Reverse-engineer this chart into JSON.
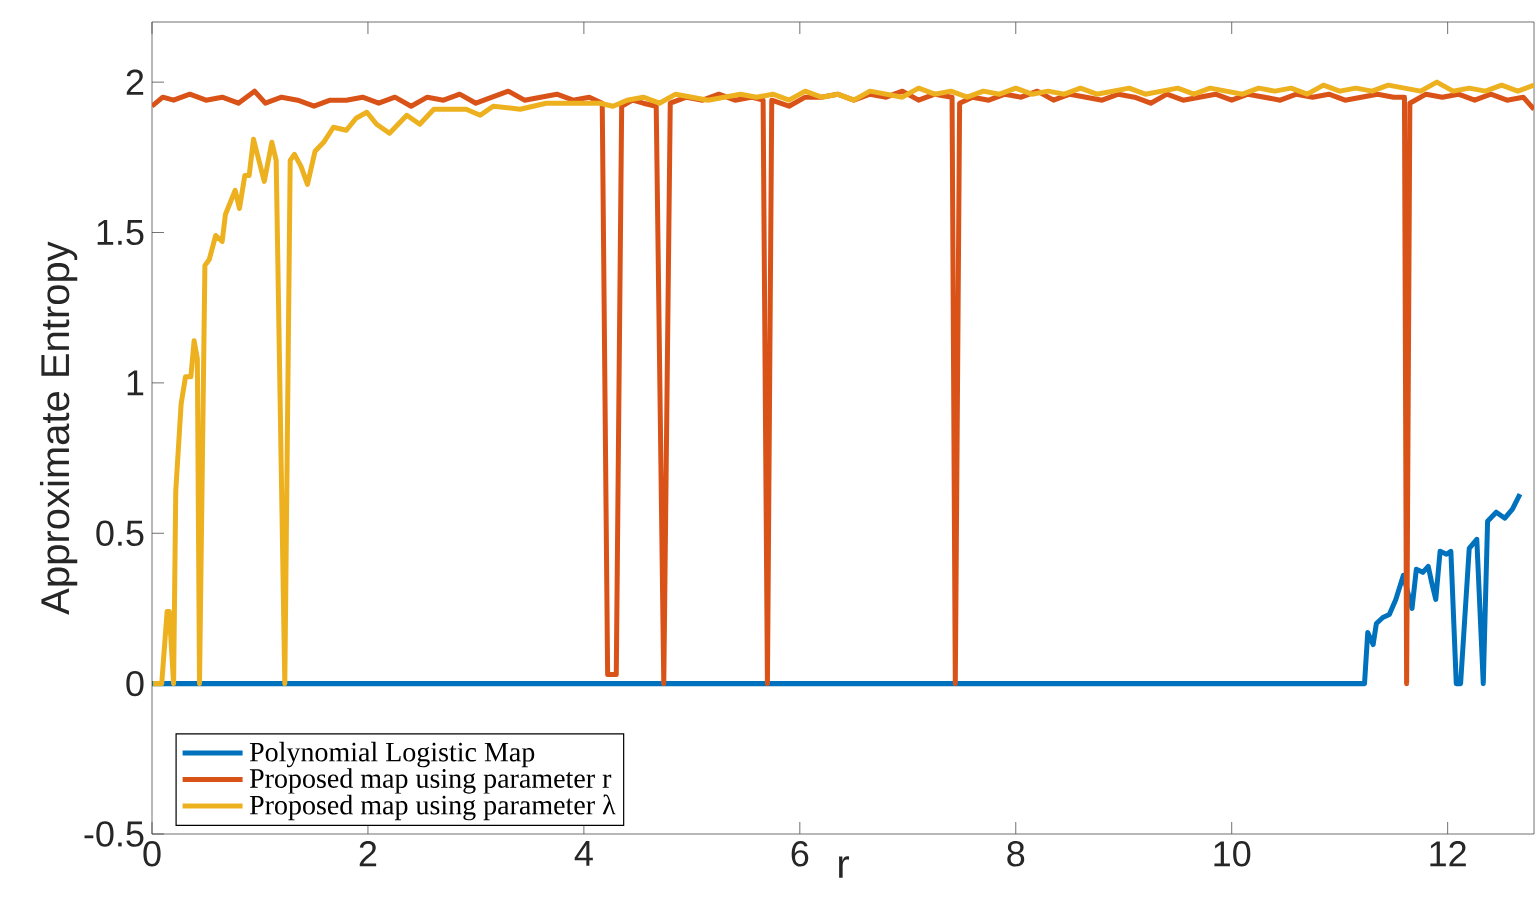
{
  "chart_data": {
    "type": "line",
    "xlabel": "r",
    "ylabel": "Approximate Entropy",
    "xlim": [
      0,
      12.8
    ],
    "ylim": [
      -0.5,
      2.2
    ],
    "xticks": [
      0,
      2,
      4,
      6,
      8,
      10,
      12
    ],
    "yticks": [
      -0.5,
      0,
      0.5,
      1,
      1.5,
      2
    ],
    "grid": false,
    "legend": "bottom left",
    "marker": "none",
    "line_style": "solid",
    "series": [
      {
        "name": "Polynomial Logistic Map",
        "color": "#0072bd",
        "x": [
          0,
          11.23,
          11.26,
          11.31,
          11.34,
          11.4,
          11.46,
          11.52,
          11.59,
          11.67,
          11.71,
          11.77,
          11.82,
          11.85,
          11.89,
          11.93,
          11.99,
          12.03,
          12.08,
          12.12,
          12.2,
          12.27,
          12.33,
          12.37,
          12.45,
          12.53,
          12.6,
          12.67
        ],
        "values": [
          0,
          0,
          0.17,
          0.13,
          0.2,
          0.22,
          0.23,
          0.28,
          0.36,
          0.25,
          0.38,
          0.37,
          0.39,
          0.34,
          0.28,
          0.44,
          0.43,
          0.44,
          0,
          0,
          0.45,
          0.48,
          0,
          0.54,
          0.57,
          0.55,
          0.58,
          0.63
        ]
      },
      {
        "name": "Proposed map using parameter r",
        "color": "#d95319",
        "x": [
          0,
          0.1,
          0.2,
          0.35,
          0.5,
          0.65,
          0.8,
          0.95,
          1.05,
          1.2,
          1.35,
          1.5,
          1.65,
          1.8,
          1.95,
          2.1,
          2.25,
          2.4,
          2.55,
          2.7,
          2.85,
          3.0,
          3.15,
          3.3,
          3.45,
          3.6,
          3.75,
          3.9,
          4.05,
          4.17,
          4.22,
          4.3,
          4.35,
          4.45,
          4.55,
          4.67,
          4.74,
          4.8,
          4.95,
          5.1,
          5.25,
          5.4,
          5.55,
          5.66,
          5.7,
          5.74,
          5.9,
          6.05,
          6.2,
          6.35,
          6.5,
          6.65,
          6.8,
          6.95,
          7.1,
          7.25,
          7.41,
          7.44,
          7.48,
          7.6,
          7.75,
          7.9,
          8.05,
          8.2,
          8.35,
          8.5,
          8.65,
          8.8,
          8.95,
          9.1,
          9.25,
          9.4,
          9.55,
          9.7,
          9.85,
          10.0,
          10.15,
          10.3,
          10.45,
          10.6,
          10.75,
          10.9,
          11.05,
          11.2,
          11.35,
          11.5,
          11.6,
          11.62,
          11.65,
          11.8,
          11.95,
          12.1,
          12.25,
          12.4,
          12.55,
          12.7,
          12.8
        ],
        "values": [
          1.92,
          1.95,
          1.94,
          1.96,
          1.94,
          1.95,
          1.93,
          1.97,
          1.93,
          1.95,
          1.94,
          1.92,
          1.94,
          1.94,
          1.95,
          1.93,
          1.95,
          1.92,
          1.95,
          1.94,
          1.96,
          1.93,
          1.95,
          1.97,
          1.94,
          1.95,
          1.96,
          1.94,
          1.95,
          1.93,
          0.03,
          0.03,
          1.92,
          1.94,
          1.93,
          1.92,
          0,
          1.93,
          1.95,
          1.94,
          1.96,
          1.94,
          1.95,
          1.94,
          0,
          1.94,
          1.92,
          1.95,
          1.95,
          1.96,
          1.94,
          1.96,
          1.95,
          1.97,
          1.94,
          1.96,
          1.95,
          0,
          1.93,
          1.95,
          1.94,
          1.96,
          1.95,
          1.97,
          1.94,
          1.96,
          1.95,
          1.94,
          1.96,
          1.95,
          1.93,
          1.96,
          1.94,
          1.95,
          1.96,
          1.94,
          1.96,
          1.95,
          1.94,
          1.96,
          1.95,
          1.96,
          1.94,
          1.95,
          1.96,
          1.95,
          1.95,
          0,
          1.93,
          1.96,
          1.95,
          1.96,
          1.94,
          1.96,
          1.94,
          1.95,
          1.91
        ]
      },
      {
        "name": "Proposed map using parameter λ",
        "color": "#edb120",
        "x": [
          0.01,
          0.09,
          0.14,
          0.16,
          0.2,
          0.22,
          0.27,
          0.31,
          0.36,
          0.39,
          0.42,
          0.44,
          0.49,
          0.53,
          0.59,
          0.65,
          0.68,
          0.77,
          0.81,
          0.86,
          0.9,
          0.94,
          0.99,
          1.04,
          1.11,
          1.15,
          1.23,
          1.28,
          1.32,
          1.38,
          1.44,
          1.51,
          1.59,
          1.68,
          1.8,
          1.89,
          1.99,
          2.08,
          2.2,
          2.36,
          2.48,
          2.61,
          2.73,
          2.91,
          3.04,
          3.16,
          3.41,
          3.65,
          3.9,
          4.15,
          4.27,
          4.4,
          4.55,
          4.7,
          4.85,
          5.0,
          5.15,
          5.3,
          5.45,
          5.6,
          5.75,
          5.9,
          6.05,
          6.2,
          6.35,
          6.5,
          6.65,
          6.8,
          6.95,
          7.1,
          7.25,
          7.4,
          7.55,
          7.7,
          7.85,
          8.0,
          8.15,
          8.3,
          8.45,
          8.6,
          8.75,
          8.9,
          9.05,
          9.2,
          9.35,
          9.5,
          9.65,
          9.8,
          9.95,
          10.1,
          10.25,
          10.4,
          10.55,
          10.7,
          10.85,
          11.0,
          11.15,
          11.3,
          11.45,
          11.6,
          11.75,
          11.9,
          12.05,
          12.2,
          12.35,
          12.5,
          12.65,
          12.8
        ],
        "values": [
          0,
          0,
          0.24,
          0.24,
          0,
          0.64,
          0.93,
          1.02,
          1.02,
          1.14,
          1.08,
          0,
          1.39,
          1.41,
          1.49,
          1.47,
          1.56,
          1.64,
          1.58,
          1.69,
          1.69,
          1.81,
          1.74,
          1.67,
          1.8,
          1.74,
          0,
          1.74,
          1.76,
          1.72,
          1.66,
          1.77,
          1.8,
          1.85,
          1.84,
          1.88,
          1.9,
          1.86,
          1.83,
          1.89,
          1.86,
          1.91,
          1.91,
          1.91,
          1.89,
          1.92,
          1.91,
          1.93,
          1.93,
          1.93,
          1.92,
          1.94,
          1.95,
          1.93,
          1.96,
          1.95,
          1.94,
          1.95,
          1.96,
          1.95,
          1.96,
          1.94,
          1.97,
          1.95,
          1.96,
          1.94,
          1.97,
          1.96,
          1.95,
          1.98,
          1.96,
          1.97,
          1.95,
          1.97,
          1.96,
          1.98,
          1.96,
          1.97,
          1.96,
          1.98,
          1.96,
          1.97,
          1.98,
          1.96,
          1.97,
          1.98,
          1.96,
          1.98,
          1.97,
          1.96,
          1.98,
          1.97,
          1.98,
          1.96,
          1.99,
          1.97,
          1.98,
          1.97,
          1.99,
          1.98,
          1.97,
          2.0,
          1.97,
          1.98,
          1.97,
          1.99,
          1.97,
          1.99
        ]
      }
    ]
  }
}
